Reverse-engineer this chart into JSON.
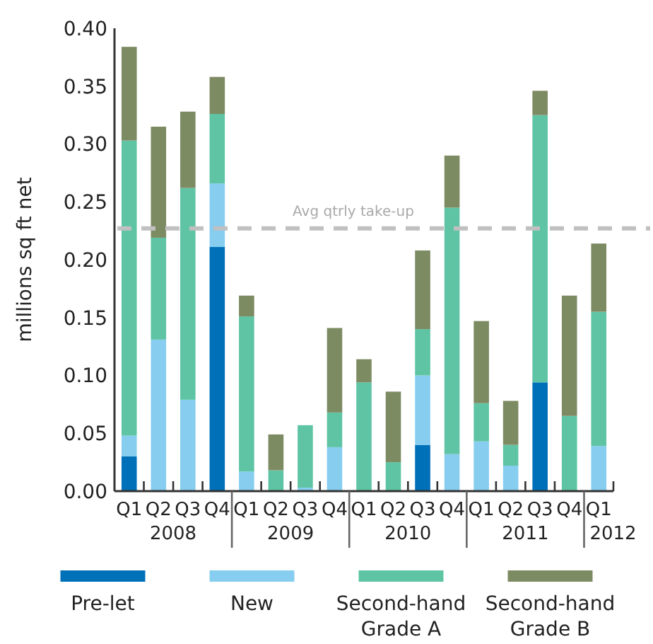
{
  "chart_data": {
    "type": "bar",
    "stacked": true,
    "ylabel": "millions sq ft net",
    "categories": [
      "Q1",
      "Q2",
      "Q3",
      "Q4",
      "Q1",
      "Q2",
      "Q3",
      "Q4",
      "Q1",
      "Q2",
      "Q3",
      "Q4",
      "Q1",
      "Q2",
      "Q3",
      "Q4",
      "Q1"
    ],
    "series": [
      {
        "name": "Pre-let",
        "color": "#0070b8",
        "values": [
          0.03,
          0,
          0,
          0.211,
          0,
          0,
          0,
          0,
          0,
          0,
          0.04,
          0,
          0,
          0,
          0.094,
          0,
          0
        ]
      },
      {
        "name": "New",
        "color": "#86cdf0",
        "values": [
          0.018,
          0.131,
          0.079,
          0.055,
          0.017,
          0,
          0.003,
          0.038,
          0,
          0,
          0.06,
          0.032,
          0.043,
          0.022,
          0,
          0,
          0.039
        ]
      },
      {
        "name": "Second-hand Grade A",
        "color": "#5ec4a4",
        "values": [
          0.255,
          0.088,
          0.183,
          0.06,
          0.134,
          0.018,
          0.054,
          0.03,
          0.094,
          0.025,
          0.04,
          0.213,
          0.033,
          0.018,
          0.231,
          0.065,
          0.116
        ]
      },
      {
        "name": "Second-hand Grade B",
        "color": "#7d8b63",
        "values": [
          0.081,
          0.096,
          0.066,
          0.032,
          0.018,
          0.031,
          0,
          0.073,
          0.02,
          0.061,
          0.068,
          0.045,
          0.071,
          0.038,
          0.021,
          0.104,
          0.059
        ]
      }
    ],
    "ylim": [
      0,
      0.4
    ],
    "yticks": [
      {
        "value": 0,
        "label": "0.00"
      },
      {
        "value": 0.05,
        "label": "0.05"
      },
      {
        "value": 0.1,
        "label": "0.10"
      },
      {
        "value": 0.15,
        "label": "0.15"
      },
      {
        "value": 0.2,
        "label": "0.20"
      },
      {
        "value": 0.25,
        "label": "0.25"
      },
      {
        "value": 0.3,
        "label": "0.30"
      },
      {
        "value": 0.35,
        "label": "0.35"
      },
      {
        "value": 0.4,
        "label": "0.40"
      }
    ],
    "ref_lines": [
      {
        "axis": "y",
        "value": 0.227,
        "label": "Avg qtrly take-up",
        "color": "#c0c0c0",
        "line_style": "dashed"
      }
    ],
    "annotations": [
      "2008",
      "2009",
      "2010",
      "2011",
      "2012"
    ],
    "legend": "bottom",
    "grid": false
  }
}
